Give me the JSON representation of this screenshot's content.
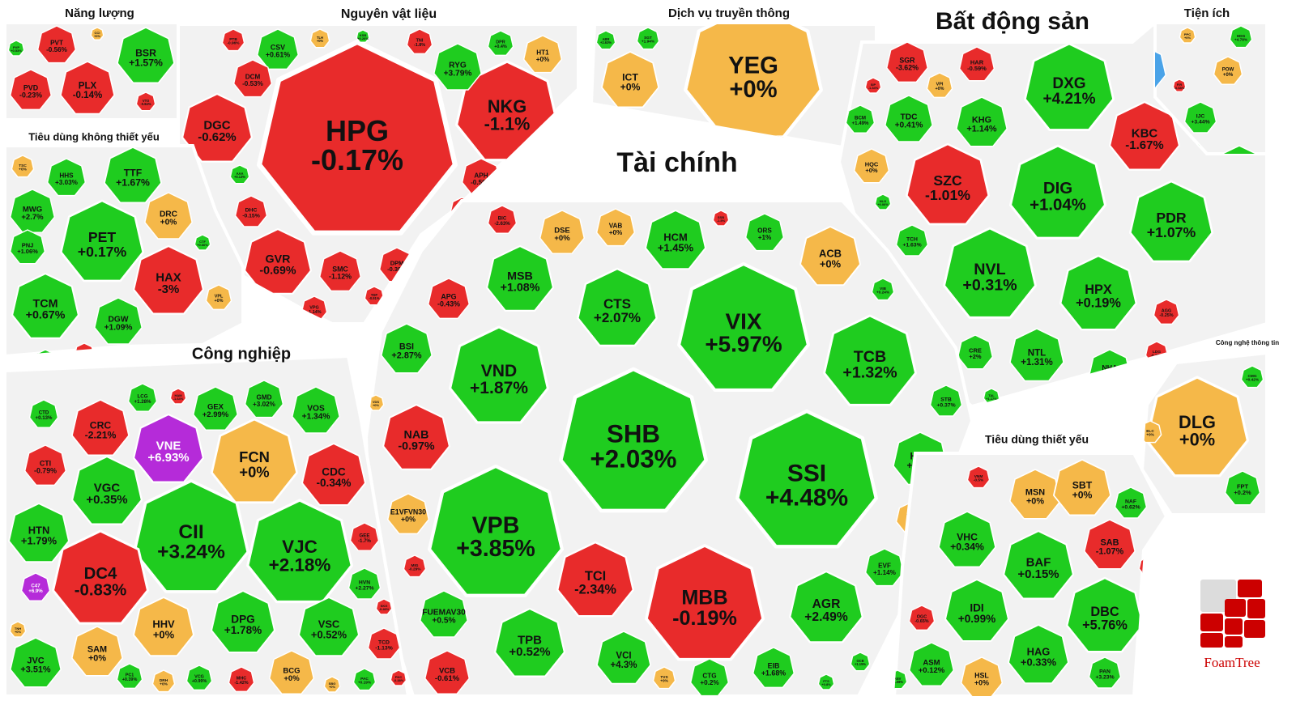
{
  "chart_data": {
    "type": "treemap",
    "colors": {
      "up": "#1fcc1f",
      "down": "#e82b2b",
      "flat": "#f5b849",
      "ceiling": "#b52bd9",
      "floor": "#4aa3e8",
      "sector_bg": "#f2f2f2",
      "sector_border": "#ffffff"
    },
    "sectors": [
      {
        "name": "Năng lượng",
        "stocks": [
          [
            "PVT",
            "-0.56%"
          ],
          [
            "BSR",
            "+1.57%"
          ],
          [
            "PVD",
            "-0.23%"
          ],
          [
            "PLX",
            "-0.14%"
          ],
          [
            "CCI",
            "+0%"
          ],
          [
            "VTO",
            "-0.84%"
          ],
          [
            "PVP",
            "+0.53%"
          ]
        ]
      },
      {
        "name": "Nguyên vật liệu",
        "stocks": [
          [
            "HPG",
            "-0.17%"
          ],
          [
            "NKG",
            "-1.1%"
          ],
          [
            "DGC",
            "-0.62%"
          ],
          [
            "GVR",
            "-0.69%"
          ],
          [
            "CSV",
            "+0.61%"
          ],
          [
            "TLH",
            "+0%"
          ],
          [
            "TNI",
            "-1.8%"
          ],
          [
            "RYG",
            "+3.79%"
          ],
          [
            "DPR",
            "+0.4%"
          ],
          [
            "HT1",
            "+0%"
          ],
          [
            "PTB",
            "-0.96%"
          ],
          [
            "DCM",
            "-0.53%"
          ],
          [
            "DHC",
            "-0.15%"
          ],
          [
            "SMC",
            "-1.12%"
          ],
          [
            "DPM",
            "-0.38%"
          ],
          [
            "VPG",
            "-1.14%"
          ],
          [
            "TDP",
            "-0.91%"
          ],
          [
            "APH",
            "-0.59%"
          ],
          [
            "PHR",
            "-0.36%"
          ],
          [
            "HSG",
            "-0.5%"
          ],
          [
            "AAA",
            "+0.13%"
          ],
          [
            "KSB",
            "+0.26%"
          ]
        ]
      },
      {
        "name": "Dịch vụ truyền thông",
        "stocks": [
          [
            "YEG",
            "+0%"
          ],
          [
            "ICT",
            "+0%"
          ],
          [
            "ABR",
            "+2.63%"
          ],
          [
            "SGT",
            "+1.94%"
          ]
        ]
      },
      {
        "name": "Bất động sản",
        "stocks": [
          [
            "DXG",
            "+4.21%"
          ],
          [
            "DIG",
            "+1.04%"
          ],
          [
            "PDR",
            "+1.07%"
          ],
          [
            "NVL",
            "+0.31%"
          ],
          [
            "HPX",
            "+0.19%"
          ],
          [
            "SZC",
            "-1.01%"
          ],
          [
            "KBC",
            "-1.67%"
          ],
          [
            "SGR",
            "-3.62%"
          ],
          [
            "HAR",
            "-0.59%"
          ],
          [
            "VPI",
            "+0%"
          ],
          [
            "TDC",
            "+0.41%"
          ],
          [
            "KHG",
            "+1.14%"
          ],
          [
            "BCM",
            "+1.49%"
          ],
          [
            "HQC",
            "+0%"
          ],
          [
            "TCH",
            "+1.63%"
          ],
          [
            "NTL",
            "+1.31%"
          ],
          [
            "NHA",
            "+1.55%"
          ],
          [
            "CRE",
            "+2%"
          ],
          [
            "DXS",
            "+4.35%"
          ],
          [
            "AGG",
            "-0.25%"
          ],
          [
            "LDG",
            "-0.21%"
          ],
          [
            "NLG",
            "+0.06%"
          ],
          [
            "SIP",
            "-1.34%"
          ],
          [
            "TAL",
            "+1.17%"
          ]
        ]
      },
      {
        "name": "Tiện ích",
        "stocks": [
          [
            "EVG",
            "-6.81%"
          ],
          [
            "HDG",
            "+4.78%"
          ],
          [
            "POW",
            "+0%"
          ],
          [
            "PPC",
            "+0%"
          ],
          [
            "IJC",
            "+3.44%"
          ],
          [
            "SCR",
            "+4.3%"
          ],
          [
            "KDH",
            "+0%"
          ],
          [
            "QCG",
            "+1.09%"
          ],
          [
            "VHM",
            "+1.4%"
          ],
          [
            "ITC",
            "+1.37%"
          ],
          [
            "FIR",
            "-0.68%"
          ]
        ]
      },
      {
        "name": "Tiêu dùng không thiết yếu",
        "stocks": [
          [
            "TSC",
            "+0%"
          ],
          [
            "HHS",
            "+3.03%"
          ],
          [
            "TTF",
            "+1.67%"
          ],
          [
            "MWG",
            "+2.7%"
          ],
          [
            "PET",
            "+0.17%"
          ],
          [
            "DRC",
            "+0%"
          ],
          [
            "PNJ",
            "+1.06%"
          ],
          [
            "HAX",
            "-3%"
          ],
          [
            "TCM",
            "+0.67%"
          ],
          [
            "DGW",
            "+1.09%"
          ],
          [
            "VPL",
            "+0%"
          ],
          [
            "CSM",
            "+0.68%"
          ],
          [
            "FRT",
            "-1.38%"
          ],
          [
            "CTF",
            "+0.66%"
          ]
        ]
      },
      {
        "name": "Tài chính",
        "stocks": [
          [
            "VIX",
            "+5.97%"
          ],
          [
            "SHB",
            "+2.03%"
          ],
          [
            "SSI",
            "+4.48%"
          ],
          [
            "VPB",
            "+3.85%"
          ],
          [
            "MBB",
            "-0.19%"
          ],
          [
            "TCB",
            "+1.32%"
          ],
          [
            "VND",
            "+1.87%"
          ],
          [
            "CTS",
            "+2.07%"
          ],
          [
            "MSB",
            "+1.08%"
          ],
          [
            "HCM",
            "+1.45%"
          ],
          [
            "ACB",
            "+0%"
          ],
          [
            "DSE",
            "+0%"
          ],
          [
            "VAB",
            "+0%"
          ],
          [
            "ORS",
            "+1%"
          ],
          [
            "BIC",
            "-2.63%"
          ],
          [
            "APG",
            "-0.43%"
          ],
          [
            "BSI",
            "+2.87%"
          ],
          [
            "NAB",
            "-0.97%"
          ],
          [
            "TCI",
            "-2.34%"
          ],
          [
            "TPB",
            "+0.52%"
          ],
          [
            "AGR",
            "+2.49%"
          ],
          [
            "HDB",
            "+2.1%"
          ],
          [
            "STB",
            "+0.37%"
          ],
          [
            "TVB",
            "+0%"
          ],
          [
            "EVF",
            "+1.14%"
          ],
          [
            "EIB",
            "+1.68%"
          ],
          [
            "VCI",
            "+4.3%"
          ],
          [
            "VCB",
            "-0.61%"
          ],
          [
            "CTG",
            "+0.2%"
          ],
          [
            "TVS",
            "+0%"
          ],
          [
            "FUEMAV30",
            "+0.5%"
          ],
          [
            "E1VFVN30",
            "+0%"
          ],
          [
            "MIG",
            "-0.29%"
          ],
          [
            "VDS",
            "+0%"
          ],
          [
            "VIB",
            "+0.24%"
          ],
          [
            "SSB",
            "-1.5%"
          ],
          [
            "OCB",
            "+1.15%"
          ],
          [
            "FTS",
            "+0.8%"
          ]
        ]
      },
      {
        "name": "Công nghiệp",
        "stocks": [
          [
            "CII",
            "+3.24%"
          ],
          [
            "VJC",
            "+2.18%"
          ],
          [
            "DC4",
            "-0.83%"
          ],
          [
            "VNE",
            "+6.93%"
          ],
          [
            "FCN",
            "+0%"
          ],
          [
            "CDC",
            "-0.34%"
          ],
          [
            "VGC",
            "+0.35%"
          ],
          [
            "HTN",
            "+1.79%"
          ],
          [
            "CRC",
            "-2.21%"
          ],
          [
            "CTI",
            "-0.79%"
          ],
          [
            "CTD",
            "+0.13%"
          ],
          [
            "LCG",
            "+1.28%"
          ],
          [
            "GEX",
            "+2.99%"
          ],
          [
            "GMD",
            "+3.02%"
          ],
          [
            "VOS",
            "+1.34%"
          ],
          [
            "HHV",
            "+0%"
          ],
          [
            "DPG",
            "+1.78%"
          ],
          [
            "VSC",
            "+0.52%"
          ],
          [
            "SAM",
            "+0%"
          ],
          [
            "BCG",
            "+0%"
          ],
          [
            "JVC",
            "+3.51%"
          ],
          [
            "C47",
            "+6.9%"
          ],
          [
            "TCD",
            "-1.13%"
          ],
          [
            "HVN",
            "+2.27%"
          ],
          [
            "GEE",
            "-1.7%"
          ],
          [
            "PC1",
            "+0.39%"
          ],
          [
            "DRH",
            "+0%"
          ],
          [
            "VCG",
            "+0.99%"
          ],
          [
            "MHC",
            "-1.42%"
          ],
          [
            "SBG",
            "+0%"
          ],
          [
            "PAC",
            "+0.19%"
          ],
          [
            "PHC",
            "-0.38%"
          ],
          [
            "TNH",
            "+0%"
          ],
          [
            "SKG",
            "-0.46%"
          ],
          [
            "HAM",
            "-1.64%"
          ]
        ]
      },
      {
        "name": "Tiêu dùng thiết yếu",
        "stocks": [
          [
            "MSN",
            "+0%"
          ],
          [
            "SBT",
            "+0%"
          ],
          [
            "VHC",
            "+0.34%"
          ],
          [
            "BAF",
            "+0.15%"
          ],
          [
            "IDI",
            "+0.99%"
          ],
          [
            "DBC",
            "+5.76%"
          ],
          [
            "HAG",
            "+0.33%"
          ],
          [
            "SAB",
            "-1.07%"
          ],
          [
            "NAF",
            "+0.62%"
          ],
          [
            "ASM",
            "+0.12%"
          ],
          [
            "HSL",
            "+0%"
          ],
          [
            "PAN",
            "+3.23%"
          ],
          [
            "OGC",
            "-0.65%"
          ],
          [
            "VNM",
            "-0.5%"
          ],
          [
            "ANV",
            "+1.08%"
          ],
          [
            "KDC",
            "-1.29%"
          ]
        ]
      },
      {
        "name": "Công nghệ thông tin",
        "stocks": [
          [
            "DLG",
            "+0%"
          ],
          [
            "FPT",
            "+0.2%"
          ],
          [
            "ELC",
            "+0%"
          ],
          [
            "CMG",
            "+0.42%"
          ]
        ]
      }
    ]
  },
  "logo": {
    "text": "FoamTree"
  }
}
